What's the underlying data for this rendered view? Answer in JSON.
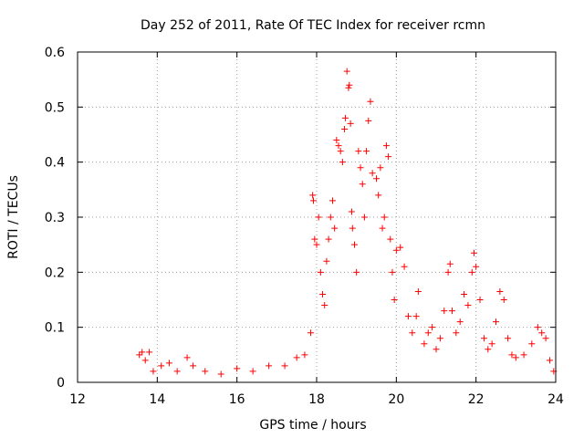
{
  "chart_data": {
    "type": "scatter",
    "title": "Day 252 of 2011, Rate Of TEC Index for receiver rcmn",
    "xlabel": "GPS time / hours",
    "ylabel": "ROTI / TECUs",
    "xlim": [
      12,
      24
    ],
    "ylim": [
      0,
      0.6
    ],
    "xticks": [
      "12",
      "14",
      "16",
      "18",
      "20",
      "22",
      "24"
    ],
    "yticks": [
      "0",
      "0.1",
      "0.2",
      "0.3",
      "0.4",
      "0.5",
      "0.6"
    ],
    "grid": true,
    "marker": "plus",
    "color": "#ff0000",
    "series": [
      {
        "points": [
          [
            13.55,
            0.05
          ],
          [
            13.62,
            0.055
          ],
          [
            13.7,
            0.04
          ],
          [
            13.8,
            0.055
          ],
          [
            13.9,
            0.02
          ],
          [
            14.1,
            0.03
          ],
          [
            14.3,
            0.035
          ],
          [
            14.5,
            0.02
          ],
          [
            14.75,
            0.045
          ],
          [
            14.9,
            0.03
          ],
          [
            15.2,
            0.02
          ],
          [
            15.6,
            0.015
          ],
          [
            16.0,
            0.025
          ],
          [
            16.4,
            0.02
          ],
          [
            16.8,
            0.03
          ],
          [
            17.2,
            0.03
          ],
          [
            17.5,
            0.045
          ],
          [
            17.7,
            0.05
          ],
          [
            17.85,
            0.09
          ],
          [
            17.9,
            0.34
          ],
          [
            17.92,
            0.33
          ],
          [
            17.95,
            0.26
          ],
          [
            18.0,
            0.25
          ],
          [
            18.05,
            0.3
          ],
          [
            18.1,
            0.2
          ],
          [
            18.15,
            0.16
          ],
          [
            18.2,
            0.14
          ],
          [
            18.25,
            0.22
          ],
          [
            18.3,
            0.26
          ],
          [
            18.35,
            0.3
          ],
          [
            18.4,
            0.33
          ],
          [
            18.45,
            0.28
          ],
          [
            18.5,
            0.44
          ],
          [
            18.55,
            0.43
          ],
          [
            18.6,
            0.42
          ],
          [
            18.65,
            0.4
          ],
          [
            18.7,
            0.46
          ],
          [
            18.72,
            0.48
          ],
          [
            18.76,
            0.565
          ],
          [
            18.8,
            0.535
          ],
          [
            18.82,
            0.54
          ],
          [
            18.85,
            0.47
          ],
          [
            18.88,
            0.31
          ],
          [
            18.9,
            0.28
          ],
          [
            18.95,
            0.25
          ],
          [
            19.0,
            0.2
          ],
          [
            19.05,
            0.42
          ],
          [
            19.1,
            0.39
          ],
          [
            19.15,
            0.36
          ],
          [
            19.2,
            0.3
          ],
          [
            19.25,
            0.42
          ],
          [
            19.3,
            0.475
          ],
          [
            19.35,
            0.51
          ],
          [
            19.4,
            0.38
          ],
          [
            19.5,
            0.37
          ],
          [
            19.55,
            0.34
          ],
          [
            19.6,
            0.39
          ],
          [
            19.65,
            0.28
          ],
          [
            19.7,
            0.3
          ],
          [
            19.75,
            0.43
          ],
          [
            19.8,
            0.41
          ],
          [
            19.85,
            0.26
          ],
          [
            19.9,
            0.2
          ],
          [
            19.95,
            0.15
          ],
          [
            20.0,
            0.24
          ],
          [
            20.1,
            0.245
          ],
          [
            20.2,
            0.21
          ],
          [
            20.3,
            0.12
          ],
          [
            20.4,
            0.09
          ],
          [
            20.5,
            0.12
          ],
          [
            20.55,
            0.165
          ],
          [
            20.7,
            0.07
          ],
          [
            20.8,
            0.09
          ],
          [
            20.9,
            0.1
          ],
          [
            21.0,
            0.06
          ],
          [
            21.1,
            0.08
          ],
          [
            21.2,
            0.13
          ],
          [
            21.3,
            0.2
          ],
          [
            21.35,
            0.215
          ],
          [
            21.4,
            0.13
          ],
          [
            21.5,
            0.09
          ],
          [
            21.6,
            0.11
          ],
          [
            21.7,
            0.16
          ],
          [
            21.8,
            0.14
          ],
          [
            21.9,
            0.2
          ],
          [
            21.95,
            0.235
          ],
          [
            22.0,
            0.21
          ],
          [
            22.1,
            0.15
          ],
          [
            22.2,
            0.08
          ],
          [
            22.3,
            0.06
          ],
          [
            22.4,
            0.07
          ],
          [
            22.5,
            0.11
          ],
          [
            22.6,
            0.165
          ],
          [
            22.7,
            0.15
          ],
          [
            22.8,
            0.08
          ],
          [
            22.9,
            0.05
          ],
          [
            23.0,
            0.045
          ],
          [
            23.2,
            0.05
          ],
          [
            23.4,
            0.07
          ],
          [
            23.55,
            0.1
          ],
          [
            23.65,
            0.09
          ],
          [
            23.75,
            0.08
          ],
          [
            23.85,
            0.04
          ],
          [
            23.95,
            0.02
          ]
        ]
      }
    ]
  }
}
